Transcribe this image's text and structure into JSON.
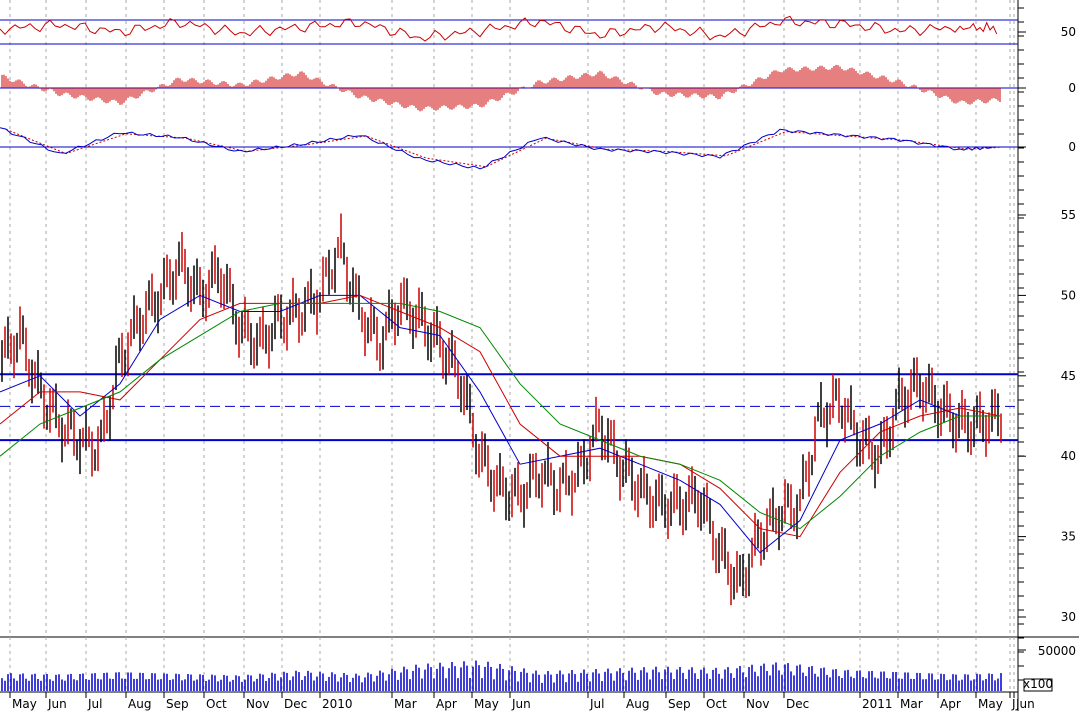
{
  "chart_data": [
    {
      "type": "line",
      "panel": "rsi",
      "ylim": [
        0,
        100
      ],
      "yticks": [
        50
      ],
      "hlines": [
        30,
        70
      ],
      "colors": {
        "line": "#cc0000",
        "hline": "#0000cc"
      },
      "series": [
        {
          "x": [
            0,
            60,
            120,
            180,
            240,
            300,
            360,
            420,
            480,
            540,
            600,
            660,
            720,
            780,
            840,
            900,
            960,
            1000
          ],
          "values": [
            55,
            62,
            50,
            66,
            48,
            58,
            66,
            40,
            52,
            68,
            45,
            60,
            42,
            68,
            64,
            52,
            58,
            56
          ]
        }
      ]
    },
    {
      "type": "bar",
      "panel": "macd-histogram",
      "yticks": [
        0
      ],
      "colors": {
        "bar": "#cc0000",
        "zero": "#0000cc"
      },
      "series": [
        {
          "x": [
            0,
            60,
            120,
            180,
            240,
            300,
            360,
            420,
            480,
            540,
            600,
            660,
            720,
            780,
            840,
            900,
            960,
            1000
          ],
          "values": [
            0.4,
            -0.2,
            -0.5,
            0.3,
            0.1,
            0.5,
            -0.3,
            -0.7,
            -0.6,
            0.2,
            0.5,
            -0.2,
            -0.3,
            0.6,
            0.7,
            0.2,
            -0.5,
            -0.4
          ]
        }
      ]
    },
    {
      "type": "line",
      "panel": "macd",
      "yticks": [
        0
      ],
      "colors": {
        "macd": "#0000cc",
        "signal": "#cc0000",
        "zero": "#0000cc"
      },
      "series": [
        {
          "x": [
            0,
            60,
            120,
            180,
            240,
            300,
            360,
            420,
            480,
            540,
            600,
            660,
            720,
            780,
            840,
            900,
            960,
            1000
          ],
          "values": [
            0.8,
            -0.3,
            0.6,
            0.4,
            -0.2,
            0.1,
            0.5,
            -0.5,
            -0.9,
            0.4,
            -0.1,
            -0.2,
            -0.4,
            0.7,
            0.5,
            0.3,
            -0.1,
            0.0
          ]
        }
      ]
    },
    {
      "type": "line",
      "panel": "price",
      "ylim": [
        29,
        57
      ],
      "yticks": [
        30,
        35,
        40,
        45,
        50,
        55
      ],
      "hlines": [
        {
          "value": 45.1,
          "style": "solid"
        },
        {
          "value": 41.0,
          "style": "solid"
        },
        {
          "value": 43.1,
          "style": "dashed"
        }
      ],
      "colors": {
        "price": "#cc0000",
        "ma_short": "#0000cc",
        "ma_mid": "#cc0000",
        "ma_long": "#008800",
        "hline": "#0000cc"
      },
      "series": [
        {
          "x": [
            0,
            20,
            40,
            60,
            80,
            100,
            120,
            140,
            160,
            180,
            200,
            220,
            240,
            260,
            280,
            300,
            320,
            340,
            360,
            380,
            400,
            420,
            440,
            460,
            480,
            500,
            520,
            540,
            560,
            580,
            600,
            620,
            640,
            660,
            680,
            700,
            720,
            740,
            760,
            780,
            800,
            820,
            840,
            860,
            880,
            900,
            920,
            940,
            960,
            980,
            1000
          ],
          "values": [
            46,
            47.5,
            44,
            42,
            41,
            40.5,
            46,
            48.5,
            50,
            52,
            50,
            51.5,
            48,
            47,
            48.5,
            49,
            50,
            53,
            49,
            47,
            49.5,
            48.5,
            47,
            45,
            40,
            38,
            37.5,
            39,
            38,
            39,
            42,
            39.5,
            38,
            37,
            37,
            37.5,
            34,
            32,
            35,
            36.5,
            37,
            42.5,
            43.5,
            41,
            40,
            43.5,
            44.5,
            43,
            42,
            42,
            42.5
          ]
        },
        {
          "x": [
            0,
            40,
            80,
            120,
            160,
            200,
            240,
            280,
            320,
            360,
            400,
            440,
            480,
            520,
            560,
            600,
            640,
            680,
            720,
            760,
            800,
            840,
            880,
            920,
            960,
            1000
          ],
          "values": [
            44,
            45,
            42.5,
            44.5,
            48.5,
            50,
            49,
            49,
            50,
            50,
            48,
            47.5,
            44,
            39.5,
            40,
            40.5,
            39.5,
            38.5,
            37,
            34,
            36,
            41,
            42,
            43.5,
            42.5,
            42.5
          ]
        },
        {
          "x": [
            0,
            40,
            80,
            120,
            160,
            200,
            240,
            280,
            320,
            360,
            400,
            440,
            480,
            520,
            560,
            600,
            640,
            680,
            720,
            760,
            800,
            840,
            880,
            920,
            960,
            1000
          ],
          "values": [
            42,
            44,
            44,
            43.5,
            46,
            48.5,
            49.5,
            49.5,
            49.5,
            50,
            49,
            48,
            46.5,
            42,
            40,
            40,
            40,
            39.5,
            38,
            35.5,
            35,
            39,
            41.5,
            42.5,
            43,
            42.5
          ]
        },
        {
          "x": [
            0,
            40,
            80,
            120,
            160,
            200,
            240,
            280,
            320,
            360,
            400,
            440,
            480,
            520,
            560,
            600,
            640,
            680,
            720,
            760,
            800,
            840,
            880,
            920,
            960,
            1000
          ],
          "values": [
            40,
            42,
            43,
            44,
            46,
            47.5,
            49,
            49.5,
            49.5,
            49.5,
            49.5,
            49,
            48,
            44.5,
            42,
            41,
            40,
            39.5,
            38.5,
            36.5,
            35.5,
            37.5,
            40,
            41.5,
            42.5,
            42.5
          ]
        }
      ]
    },
    {
      "type": "bar",
      "panel": "volume",
      "yticks": [
        50000
      ],
      "unit_label": "x100",
      "colors": {
        "bar": "#0000cc"
      },
      "series": [
        {
          "x": [
            0,
            60,
            120,
            180,
            240,
            300,
            360,
            420,
            480,
            540,
            600,
            660,
            720,
            780,
            840,
            900,
            960,
            1000
          ],
          "values": [
            15000,
            14000,
            16000,
            14500,
            13000,
            17000,
            14000,
            22000,
            25000,
            16000,
            18000,
            20000,
            19000,
            24000,
            18000,
            16000,
            14000,
            15000
          ]
        }
      ]
    },
    {
      "type": "table",
      "panel": "time-axis",
      "categories": [
        "May",
        "Jun",
        "Jul",
        "Aug",
        "Sep",
        "Oct",
        "Nov",
        "Dec",
        "2010",
        "Mar",
        "Apr",
        "May",
        "Jun",
        "Jul",
        "Aug",
        "Sep",
        "Oct",
        "Nov",
        "Dec",
        "2011",
        "Mar",
        "Apr",
        "May",
        "Jun",
        "J"
      ]
    }
  ]
}
